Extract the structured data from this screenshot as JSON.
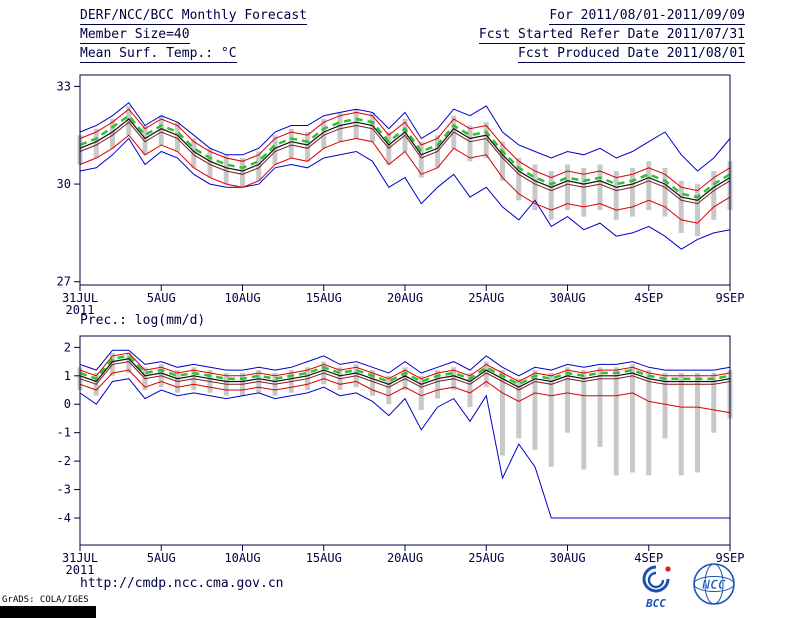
{
  "colors": {
    "axis": "#000042",
    "text": "#000042",
    "bar": "#c8c8c8",
    "blue": "#0000cc",
    "red": "#dd0000",
    "darkred": "#7a1f1f",
    "black": "#111111",
    "green": "#2fc12f",
    "logo_blue": "#1a52b4",
    "logo_red": "#d42020"
  },
  "header": {
    "title": "DERF/NCC/BCC Monthly Forecast",
    "period": "For 2011/08/01-2011/09/09",
    "member_size": "Member Size=40",
    "refer_date": "Fcst Started Refer Date 2011/07/31",
    "temp_title": "Mean Surf. Temp.: °C",
    "produced_date": "Fcst Produced Date 2011/08/01"
  },
  "footer": {
    "url": "http://cmdp.ncc.cma.gov.cn",
    "credit": "GrADS: COLA/IGES",
    "bcc_label": "BCC",
    "ncc_label": "NCC"
  },
  "chart_data": [
    {
      "type": "line",
      "title": "Mean Surf. Temp.: °C",
      "ylabel": "°C",
      "ylim": [
        26.9,
        33.35
      ],
      "yticks": [
        33,
        30,
        27
      ],
      "xlim": [
        0,
        40
      ],
      "grid": false,
      "legend": "none",
      "xticks": [
        {
          "pos": 0,
          "label": "31JUL",
          "sublabel": "2011"
        },
        {
          "pos": 5,
          "label": "5AUG"
        },
        {
          "pos": 10,
          "label": "10AUG"
        },
        {
          "pos": 15,
          "label": "15AUG"
        },
        {
          "pos": 20,
          "label": "20AUG"
        },
        {
          "pos": 25,
          "label": "25AUG"
        },
        {
          "pos": 30,
          "label": "30AUG"
        },
        {
          "pos": 35,
          "label": "4SEP"
        },
        {
          "pos": 40,
          "label": "9SEP"
        }
      ],
      "bars": {
        "color": "#c8c8c8",
        "top": [
          31.5,
          31.7,
          32.0,
          32.4,
          31.8,
          32.1,
          31.9,
          31.4,
          31.1,
          30.9,
          30.8,
          31.0,
          31.5,
          31.7,
          31.6,
          32.0,
          32.2,
          32.3,
          32.2,
          31.6,
          32.0,
          31.3,
          31.5,
          32.1,
          31.8,
          31.9,
          31.3,
          30.8,
          30.6,
          30.4,
          30.6,
          30.5,
          30.6,
          30.4,
          30.5,
          30.7,
          30.5,
          30.1,
          30.0,
          30.4,
          30.7
        ],
        "bottom": [
          30.6,
          30.8,
          31.1,
          31.5,
          30.9,
          31.2,
          31.0,
          30.5,
          30.2,
          30.0,
          29.9,
          30.1,
          30.6,
          30.8,
          30.7,
          31.1,
          31.3,
          31.4,
          31.3,
          30.6,
          31.0,
          30.2,
          30.5,
          31.1,
          30.7,
          30.8,
          30.1,
          29.5,
          29.2,
          28.9,
          29.2,
          29.0,
          29.2,
          28.9,
          29.0,
          29.2,
          29.0,
          28.5,
          28.4,
          28.9,
          29.2
        ]
      },
      "series": [
        {
          "name": "blue-upper-envelope",
          "color": "#0000cc",
          "width": 1,
          "values": [
            31.6,
            31.8,
            32.1,
            32.5,
            31.8,
            32.1,
            31.9,
            31.5,
            31.1,
            30.9,
            30.9,
            31.1,
            31.6,
            31.8,
            31.8,
            32.1,
            32.2,
            32.3,
            32.2,
            31.7,
            32.2,
            31.4,
            31.7,
            32.3,
            32.1,
            32.4,
            31.6,
            31.2,
            31.0,
            30.8,
            31.0,
            30.9,
            31.1,
            30.8,
            31.0,
            31.3,
            31.6,
            30.9,
            30.4,
            30.8,
            31.4
          ]
        },
        {
          "name": "blue-lower-envelope",
          "color": "#0000cc",
          "width": 1,
          "values": [
            30.4,
            30.5,
            30.9,
            31.4,
            30.6,
            31.0,
            30.8,
            30.3,
            30.0,
            29.9,
            29.9,
            30.0,
            30.5,
            30.6,
            30.5,
            30.8,
            30.9,
            31.0,
            30.7,
            29.9,
            30.2,
            29.4,
            29.9,
            30.3,
            29.6,
            29.9,
            29.3,
            28.9,
            29.5,
            28.7,
            29.0,
            28.6,
            28.8,
            28.4,
            28.5,
            28.7,
            28.4,
            28.0,
            28.3,
            28.5,
            28.6
          ]
        },
        {
          "name": "red-upper",
          "color": "#dd0000",
          "width": 1,
          "values": [
            31.4,
            31.6,
            31.9,
            32.3,
            31.7,
            32.0,
            31.8,
            31.3,
            31.0,
            30.8,
            30.7,
            30.9,
            31.4,
            31.6,
            31.5,
            31.9,
            32.1,
            32.2,
            32.1,
            31.5,
            31.9,
            31.2,
            31.4,
            32.0,
            31.7,
            31.8,
            31.2,
            30.7,
            30.4,
            30.2,
            30.4,
            30.3,
            30.4,
            30.2,
            30.3,
            30.5,
            30.3,
            29.9,
            29.8,
            30.2,
            30.5
          ]
        },
        {
          "name": "red-lower",
          "color": "#dd0000",
          "width": 1,
          "values": [
            30.6,
            30.8,
            31.1,
            31.5,
            30.9,
            31.2,
            31.0,
            30.5,
            30.2,
            30.0,
            29.9,
            30.1,
            30.6,
            30.8,
            30.7,
            31.1,
            31.3,
            31.4,
            31.3,
            30.6,
            31.0,
            30.3,
            30.5,
            31.1,
            30.8,
            30.9,
            30.2,
            29.7,
            29.4,
            29.2,
            29.4,
            29.3,
            29.4,
            29.2,
            29.3,
            29.5,
            29.3,
            28.9,
            28.8,
            29.3,
            29.6
          ]
        },
        {
          "name": "dark-red-line",
          "color": "#7a1f1f",
          "width": 1,
          "values": [
            31.0,
            31.2,
            31.5,
            31.9,
            31.3,
            31.6,
            31.4,
            30.9,
            30.6,
            30.4,
            30.3,
            30.5,
            31.0,
            31.2,
            31.1,
            31.5,
            31.7,
            31.8,
            31.7,
            31.1,
            31.5,
            30.8,
            31.0,
            31.6,
            31.3,
            31.4,
            30.8,
            30.3,
            30.0,
            29.8,
            30.0,
            29.9,
            30.0,
            29.8,
            29.9,
            30.1,
            29.9,
            29.5,
            29.4,
            29.8,
            30.1
          ]
        },
        {
          "name": "black-mean",
          "color": "#111111",
          "width": 1.2,
          "values": [
            31.1,
            31.3,
            31.6,
            32.0,
            31.4,
            31.7,
            31.5,
            31.0,
            30.7,
            30.5,
            30.4,
            30.6,
            31.1,
            31.3,
            31.2,
            31.6,
            31.8,
            31.9,
            31.8,
            31.2,
            31.6,
            30.9,
            31.1,
            31.7,
            31.4,
            31.5,
            30.9,
            30.4,
            30.1,
            29.9,
            30.1,
            30.0,
            30.1,
            29.9,
            30.0,
            30.2,
            30.0,
            29.6,
            29.5,
            29.9,
            30.2
          ]
        },
        {
          "name": "green-dashed-mean",
          "color": "#2fc12f",
          "width": 2.5,
          "dash": "7 5",
          "values": [
            31.2,
            31.4,
            31.75,
            32.1,
            31.5,
            31.8,
            31.6,
            31.1,
            30.8,
            30.6,
            30.5,
            30.7,
            31.2,
            31.4,
            31.3,
            31.7,
            31.9,
            32.0,
            31.9,
            31.3,
            31.7,
            31.0,
            31.2,
            31.8,
            31.5,
            31.6,
            31.0,
            30.5,
            30.2,
            30.0,
            30.2,
            30.1,
            30.2,
            30.0,
            30.1,
            30.3,
            30.1,
            29.7,
            29.6,
            30.0,
            30.3
          ]
        }
      ]
    },
    {
      "type": "line",
      "title": "Prec.: log(mm/d)",
      "ylabel": "log(mm/d)",
      "ylim": [
        -4.95,
        2.4
      ],
      "yticks": [
        2,
        1,
        0,
        -1,
        -2,
        -3,
        -4
      ],
      "xlim": [
        0,
        40
      ],
      "grid": false,
      "legend": "none",
      "xticks": [
        {
          "pos": 0,
          "label": "31JUL",
          "sublabel": "2011"
        },
        {
          "pos": 5,
          "label": "5AUG"
        },
        {
          "pos": 10,
          "label": "10AUG"
        },
        {
          "pos": 15,
          "label": "15AUG"
        },
        {
          "pos": 20,
          "label": "20AUG"
        },
        {
          "pos": 25,
          "label": "25AUG"
        },
        {
          "pos": 30,
          "label": "30AUG"
        },
        {
          "pos": 35,
          "label": "4SEP"
        },
        {
          "pos": 40,
          "label": "9SEP"
        }
      ],
      "bars": {
        "color": "#c8c8c8",
        "top": [
          1.3,
          1.1,
          1.8,
          1.8,
          1.3,
          1.4,
          1.2,
          1.3,
          1.2,
          1.1,
          1.1,
          1.2,
          1.1,
          1.2,
          1.3,
          1.5,
          1.3,
          1.4,
          1.2,
          1.0,
          1.3,
          1.0,
          1.2,
          1.3,
          1.1,
          1.5,
          1.2,
          0.9,
          1.2,
          1.1,
          1.3,
          1.2,
          1.3,
          1.3,
          1.4,
          1.2,
          1.1,
          1.1,
          1.1,
          1.1,
          1.2
        ],
        "bottom": [
          0.5,
          0.3,
          1.0,
          1.1,
          0.5,
          0.6,
          0.4,
          0.5,
          0.4,
          0.3,
          0.3,
          0.4,
          0.3,
          0.4,
          0.5,
          0.7,
          0.5,
          0.6,
          0.3,
          0.0,
          0.5,
          -0.2,
          0.2,
          0.5,
          -0.1,
          0.6,
          -1.8,
          -1.2,
          -1.6,
          -2.2,
          -1.0,
          -2.3,
          -1.5,
          -2.5,
          -2.4,
          -2.5,
          -1.2,
          -2.5,
          -2.4,
          -1.0,
          -0.5
        ]
      },
      "series": [
        {
          "name": "blue-upper-envelope",
          "color": "#0000cc",
          "width": 1,
          "values": [
            1.4,
            1.2,
            1.9,
            1.9,
            1.4,
            1.5,
            1.3,
            1.4,
            1.3,
            1.2,
            1.2,
            1.3,
            1.2,
            1.3,
            1.5,
            1.7,
            1.4,
            1.5,
            1.3,
            1.1,
            1.5,
            1.1,
            1.3,
            1.5,
            1.2,
            1.7,
            1.3,
            1.0,
            1.3,
            1.2,
            1.4,
            1.3,
            1.4,
            1.4,
            1.5,
            1.3,
            1.2,
            1.2,
            1.2,
            1.2,
            1.3
          ]
        },
        {
          "name": "blue-lower-envelope",
          "color": "#0000cc",
          "width": 1,
          "values": [
            0.4,
            0.0,
            0.8,
            0.9,
            0.2,
            0.5,
            0.3,
            0.4,
            0.3,
            0.2,
            0.3,
            0.4,
            0.2,
            0.3,
            0.4,
            0.6,
            0.3,
            0.4,
            0.1,
            -0.4,
            0.2,
            -0.9,
            -0.1,
            0.2,
            -0.6,
            0.3,
            -2.6,
            -1.4,
            -2.2,
            -4.0,
            -4.0,
            -4.0,
            -4.0,
            -4.0,
            -4.0,
            -4.0,
            -4.0,
            -4.0,
            -4.0,
            -4.0,
            -4.0
          ]
        },
        {
          "name": "red-upper",
          "color": "#dd0000",
          "width": 1,
          "values": [
            1.2,
            1.0,
            1.7,
            1.8,
            1.2,
            1.3,
            1.1,
            1.2,
            1.1,
            1.0,
            1.0,
            1.1,
            1.0,
            1.1,
            1.2,
            1.4,
            1.2,
            1.3,
            1.1,
            0.9,
            1.2,
            0.9,
            1.1,
            1.2,
            1.0,
            1.4,
            1.1,
            0.8,
            1.1,
            1.0,
            1.2,
            1.1,
            1.2,
            1.2,
            1.3,
            1.1,
            1.0,
            1.0,
            1.0,
            1.0,
            1.1
          ]
        },
        {
          "name": "red-lower",
          "color": "#dd0000",
          "width": 1,
          "values": [
            0.7,
            0.5,
            1.1,
            1.2,
            0.6,
            0.8,
            0.6,
            0.7,
            0.6,
            0.5,
            0.5,
            0.6,
            0.5,
            0.6,
            0.7,
            0.9,
            0.7,
            0.8,
            0.5,
            0.3,
            0.6,
            0.3,
            0.5,
            0.6,
            0.4,
            0.8,
            0.4,
            0.1,
            0.4,
            0.3,
            0.4,
            0.3,
            0.3,
            0.3,
            0.4,
            0.1,
            0.0,
            -0.1,
            -0.1,
            -0.2,
            -0.3
          ]
        },
        {
          "name": "dark-red-line",
          "color": "#7a1f1f",
          "width": 1,
          "values": [
            0.9,
            0.7,
            1.4,
            1.5,
            0.9,
            1.0,
            0.8,
            0.9,
            0.8,
            0.7,
            0.7,
            0.8,
            0.7,
            0.8,
            0.9,
            1.1,
            0.9,
            1.0,
            0.8,
            0.6,
            0.9,
            0.6,
            0.8,
            0.9,
            0.7,
            1.1,
            0.8,
            0.5,
            0.8,
            0.7,
            0.9,
            0.8,
            0.9,
            0.9,
            1.0,
            0.8,
            0.7,
            0.7,
            0.7,
            0.7,
            0.8
          ]
        },
        {
          "name": "black-mean",
          "color": "#111111",
          "width": 1.2,
          "values": [
            1.0,
            0.8,
            1.5,
            1.6,
            1.0,
            1.1,
            0.9,
            1.0,
            0.9,
            0.8,
            0.8,
            0.9,
            0.8,
            0.9,
            1.0,
            1.2,
            1.0,
            1.1,
            0.9,
            0.7,
            1.0,
            0.7,
            0.9,
            1.0,
            0.8,
            1.2,
            0.9,
            0.6,
            0.9,
            0.8,
            1.0,
            0.9,
            1.0,
            1.0,
            1.1,
            0.9,
            0.8,
            0.8,
            0.8,
            0.8,
            0.9
          ]
        },
        {
          "name": "green-dashed-mean",
          "color": "#2fc12f",
          "width": 2.5,
          "dash": "7 5",
          "values": [
            1.1,
            0.9,
            1.6,
            1.7,
            1.1,
            1.2,
            1.0,
            1.1,
            1.0,
            0.9,
            0.9,
            1.0,
            0.9,
            1.0,
            1.1,
            1.3,
            1.1,
            1.2,
            1.0,
            0.8,
            1.1,
            0.8,
            1.0,
            1.1,
            0.9,
            1.3,
            1.0,
            0.7,
            1.0,
            0.9,
            1.1,
            1.0,
            1.1,
            1.1,
            1.2,
            1.0,
            0.9,
            0.9,
            0.9,
            0.9,
            1.0
          ]
        }
      ]
    }
  ]
}
